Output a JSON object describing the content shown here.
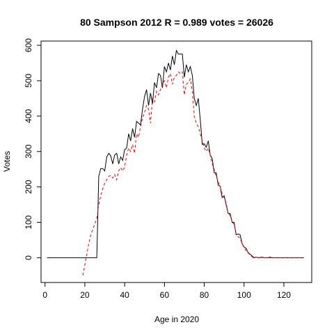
{
  "chart_data": {
    "type": "line",
    "title": "80 Sampson 2012 R = 0.989 votes = 26026",
    "xlabel": "Age in 2020",
    "ylabel": "Votes",
    "xlim": [
      -2,
      134
    ],
    "ylim": [
      -70,
      612
    ],
    "xticks": [
      0,
      20,
      40,
      60,
      80,
      100,
      120
    ],
    "yticks": [
      0,
      100,
      200,
      300,
      400,
      500,
      600
    ],
    "grid": false,
    "series": [
      {
        "color": "#000000",
        "style": "solid",
        "x": [
          1,
          2,
          3,
          4,
          5,
          6,
          7,
          8,
          9,
          10,
          11,
          12,
          13,
          14,
          15,
          16,
          17,
          18,
          19,
          20,
          21,
          22,
          23,
          24,
          25,
          26,
          27,
          28,
          29,
          30,
          31,
          32,
          33,
          34,
          35,
          36,
          37,
          38,
          39,
          40,
          41,
          42,
          43,
          44,
          45,
          46,
          47,
          48,
          49,
          50,
          51,
          52,
          53,
          54,
          55,
          56,
          57,
          58,
          59,
          60,
          61,
          62,
          63,
          64,
          65,
          66,
          67,
          68,
          69,
          70,
          71,
          72,
          73,
          74,
          75,
          76,
          77,
          78,
          79,
          80,
          81,
          82,
          83,
          84,
          85,
          86,
          87,
          88,
          89,
          90,
          91,
          92,
          93,
          94,
          95,
          96,
          97,
          98,
          99,
          100,
          101,
          102,
          103,
          104,
          105,
          106,
          107,
          108,
          109,
          110,
          111,
          112,
          113,
          114,
          115,
          116,
          117,
          118,
          119,
          120,
          121,
          122,
          123,
          124,
          125,
          126,
          127,
          128,
          129,
          130
        ],
        "y": [
          0,
          0,
          0,
          0,
          0,
          0,
          0,
          0,
          0,
          0,
          0,
          0,
          0,
          0,
          0,
          0,
          0,
          0,
          0,
          0,
          0,
          0,
          0,
          0,
          0,
          0,
          230,
          252,
          252,
          245,
          285,
          295,
          288,
          265,
          290,
          295,
          265,
          285,
          275,
          305,
          310,
          350,
          330,
          365,
          340,
          385,
          380,
          375,
          420,
          455,
          475,
          430,
          465,
          435,
          495,
          480,
          520,
          515,
          480,
          540,
          525,
          550,
          530,
          570,
          545,
          585,
          575,
          575,
          575,
          510,
          545,
          525,
          540,
          515,
          450,
          430,
          450,
          390,
          320,
          322,
          312,
          330,
          290,
          280,
          240,
          240,
          205,
          202,
          170,
          175,
          150,
          125,
          125,
          100,
          100,
          65,
          67,
          65,
          40,
          30,
          27,
          15,
          10,
          5,
          0,
          2,
          0,
          0,
          2,
          0,
          0,
          0,
          2,
          0,
          0,
          0,
          0,
          0,
          0,
          0,
          0,
          0,
          0,
          0,
          0,
          0,
          0,
          0,
          0,
          0
        ]
      },
      {
        "color": "#ff0000",
        "style": "dashed",
        "x": [
          19,
          20,
          21,
          22,
          23,
          24,
          25,
          26,
          27,
          28,
          29,
          30,
          31,
          32,
          33,
          34,
          35,
          36,
          37,
          38,
          39,
          40,
          41,
          42,
          43,
          44,
          45,
          46,
          47,
          48,
          49,
          50,
          51,
          52,
          53,
          54,
          55,
          56,
          57,
          58,
          59,
          60,
          61,
          62,
          63,
          64,
          65,
          66,
          67,
          68,
          69,
          70,
          71,
          72,
          73,
          74,
          75,
          76,
          77,
          78,
          79,
          80,
          81,
          82,
          83,
          84,
          85,
          86,
          87,
          88,
          89,
          90,
          91,
          92,
          93,
          94,
          95,
          96,
          97,
          98,
          99,
          100,
          101,
          102,
          103,
          104,
          105,
          106,
          107,
          108,
          109,
          110,
          111,
          112,
          113,
          114,
          115,
          116,
          117,
          118,
          119,
          120,
          121,
          122,
          123,
          124,
          125,
          126,
          127,
          128,
          129,
          130
        ],
        "y": [
          -50,
          -20,
          10,
          40,
          65,
          80,
          95,
          110,
          150,
          175,
          195,
          210,
          220,
          230,
          232,
          225,
          235,
          220,
          245,
          255,
          245,
          255,
          290,
          310,
          300,
          320,
          295,
          350,
          340,
          370,
          395,
          410,
          430,
          420,
          380,
          450,
          440,
          470,
          460,
          475,
          490,
          500,
          480,
          510,
          520,
          490,
          510,
          515,
          525,
          520,
          525,
          460,
          490,
          495,
          505,
          470,
          400,
          380,
          370,
          350,
          330,
          310,
          300,
          310,
          290,
          265,
          250,
          230,
          215,
          200,
          180,
          170,
          155,
          125,
          120,
          100,
          95,
          68,
          60,
          55,
          40,
          28,
          20,
          14,
          8,
          3,
          -2,
          2,
          0,
          1,
          0,
          0,
          0,
          1,
          0,
          0,
          0,
          0,
          0,
          0,
          0,
          0,
          0,
          0,
          0,
          0,
          0,
          0,
          0,
          0,
          0,
          0
        ]
      }
    ]
  }
}
